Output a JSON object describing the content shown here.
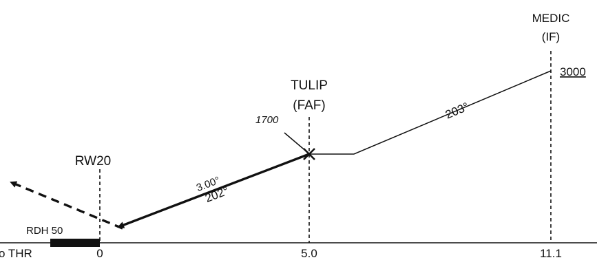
{
  "fixes": {
    "medic": {
      "name": "MEDIC",
      "role": "(IF)",
      "altitude": "3000",
      "distance": "11.1"
    },
    "tulip": {
      "name": "TULIP",
      "role": "(FAF)",
      "altitude": "1700",
      "distance": "5.0"
    },
    "runway": {
      "name": "RW20",
      "distance": "0",
      "rdh": "RDH 50"
    }
  },
  "legs": {
    "intermediate": {
      "course": "203°"
    },
    "final": {
      "angle": "3.00°",
      "course": "202°"
    }
  },
  "axis": {
    "threshold_label": "o THR"
  },
  "colors": {
    "ink": "#111111",
    "background": "#ffffff"
  }
}
